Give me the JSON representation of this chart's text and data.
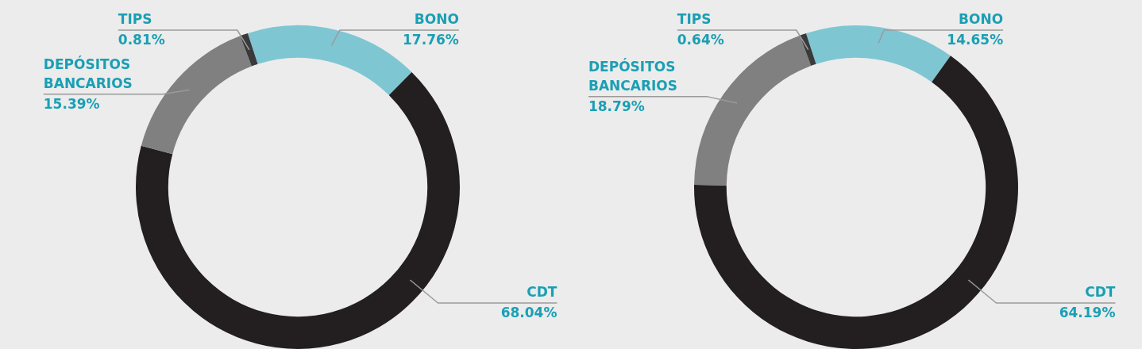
{
  "chart_data": [
    {
      "type": "donut",
      "categories": [
        "BONO",
        "CDT",
        "DEPÓSITOS BANCARIOS",
        "TIPS"
      ],
      "values": [
        17.76,
        68.04,
        15.39,
        0.81
      ],
      "value_labels": [
        "17.76%",
        "68.04%",
        "15.39%",
        "0.81%"
      ],
      "colors": [
        "#7fc6d3",
        "#231f20",
        "#808080",
        "#3a3a3a"
      ],
      "legend": false
    },
    {
      "type": "donut",
      "categories": [
        "BONO",
        "CDT",
        "DEPÓSITOS BANCARIOS",
        "TIPS"
      ],
      "values": [
        14.65,
        64.19,
        18.79,
        0.64
      ],
      "value_labels": [
        "14.65%",
        "64.19%",
        "18.79%",
        "0.64%"
      ],
      "colors": [
        "#7fc6d3",
        "#231f20",
        "#808080",
        "#3a3a3a"
      ],
      "legend": false
    }
  ]
}
